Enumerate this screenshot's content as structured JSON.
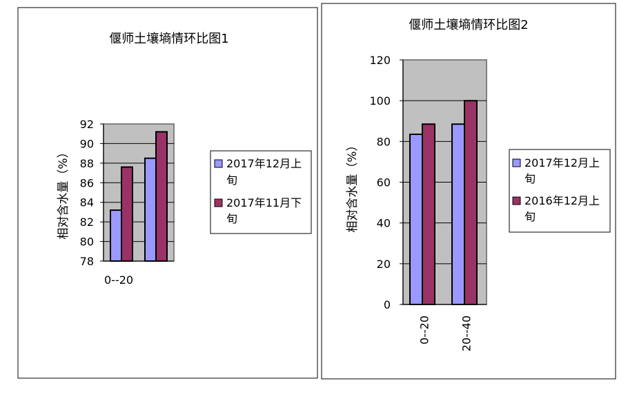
{
  "colors": {
    "series_a": "#9999FF",
    "series_b": "#993366",
    "plot_bg": "#C0C0C0",
    "border": "#000000",
    "grid": "#000000"
  },
  "chart_data": [
    {
      "type": "bar",
      "title": "偃师土壤墒情环比图1",
      "ylabel": "相对含水量（%）",
      "xlabel": "",
      "categories": [
        "0--20",
        ""
      ],
      "ylim": [
        78,
        92
      ],
      "yticks": [
        78,
        80,
        82,
        84,
        86,
        88,
        90,
        92
      ],
      "series": [
        {
          "name": "2017年12月上旬",
          "values": [
            83.2,
            88.5
          ]
        },
        {
          "name": "2017年11月下旬",
          "values": [
            87.6,
            91.2
          ]
        }
      ],
      "legend": "right",
      "grid": true
    },
    {
      "type": "bar",
      "title": "偃师土壤墒情环比图2",
      "ylabel": "相对含水量（%）",
      "xlabel": "",
      "categories": [
        "0--20",
        "20--40"
      ],
      "ylim": [
        0,
        120
      ],
      "yticks": [
        0,
        20,
        40,
        60,
        80,
        100,
        120
      ],
      "series": [
        {
          "name": "2017年12月上旬",
          "values": [
            83.5,
            88.5
          ]
        },
        {
          "name": "2016年12月上旬",
          "values": [
            88.5,
            100
          ]
        }
      ],
      "legend": "right",
      "grid": true
    }
  ]
}
